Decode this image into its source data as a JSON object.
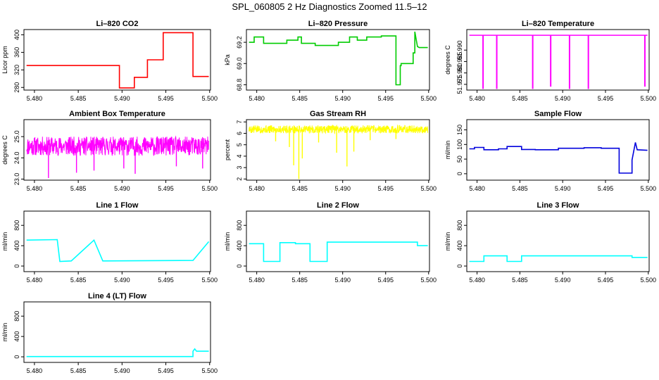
{
  "page": {
    "title": "SPL_060805  2 Hz Diagnostics Zoomed 11.5–12"
  },
  "chart_data": [
    {
      "type": "line",
      "title": "Li–820 CO2",
      "ylabel": "Licor ppm",
      "color": "#ff0000",
      "xlim": [
        5.4788,
        5.5001
      ],
      "ylim": [
        274,
        412
      ],
      "yticks": [
        280,
        320,
        360,
        400
      ],
      "ytick_labels": [
        "280",
        "320",
        "360",
        "400"
      ],
      "xticks": [
        5.48,
        5.485,
        5.49,
        5.495,
        5.5
      ],
      "xtick_labels": [
        "5.480",
        "5.485",
        "5.490",
        "5.495",
        "5.500"
      ],
      "series": [
        {
          "x": [
            5.4791,
            5.4897,
            5.4897,
            5.4914,
            5.4914,
            5.4929,
            5.4929,
            5.4947,
            5.4947,
            5.4981,
            5.4981,
            5.4999
          ],
          "y": [
            330,
            330,
            279,
            279,
            303,
            303,
            343,
            343,
            405,
            405,
            305,
            305
          ]
        }
      ]
    },
    {
      "type": "line",
      "title": "Li–820 Pressure",
      "ylabel": "kPa",
      "color": "#00cc00",
      "xlim": [
        5.4788,
        5.5001
      ],
      "ylim": [
        68.75,
        69.32
      ],
      "yticks": [
        68.8,
        69.0,
        69.2
      ],
      "ytick_labels": [
        "68.8",
        "69.0",
        "69.2"
      ],
      "xticks": [
        5.48,
        5.485,
        5.49,
        5.495,
        5.5
      ],
      "xtick_labels": [
        "5.480",
        "5.485",
        "5.490",
        "5.495",
        "5.500"
      ],
      "series": [
        {
          "x": [
            5.4791,
            5.4797,
            5.4797,
            5.4808,
            5.4808,
            5.4835,
            5.4835,
            5.4848,
            5.4848,
            5.4852,
            5.4852,
            5.4868,
            5.4868,
            5.4895,
            5.4895,
            5.4908,
            5.4908,
            5.4917,
            5.4917,
            5.4928,
            5.4928,
            5.4945,
            5.4945,
            5.4962,
            5.4962,
            5.4967,
            5.4967,
            5.4968,
            5.4968,
            5.4982,
            5.4982,
            5.4984,
            5.4984,
            5.4987,
            5.4989,
            5.4999
          ],
          "y": [
            69.2,
            69.2,
            69.25,
            69.25,
            69.19,
            69.19,
            69.22,
            69.22,
            69.25,
            69.25,
            69.19,
            69.19,
            69.17,
            69.17,
            69.2,
            69.2,
            69.25,
            69.25,
            69.22,
            69.22,
            69.25,
            69.25,
            69.26,
            69.26,
            68.8,
            68.8,
            68.98,
            68.98,
            69.0,
            69.0,
            69.1,
            69.1,
            69.3,
            69.16,
            69.15,
            69.15
          ]
        }
      ]
    },
    {
      "type": "line",
      "title": "Li–820 Temperature",
      "ylabel": "degrees C",
      "color": "#ff00ff",
      "xlim": [
        5.4788,
        5.5001
      ],
      "ylim": [
        51.9725,
        51.999
      ],
      "yticks": [
        51.975,
        51.98,
        51.985,
        51.99
      ],
      "ytick_labels": [
        "51.975",
        "51.980",
        "51.985",
        "51.990"
      ],
      "xticks": [
        5.48,
        5.485,
        5.49,
        5.495,
        5.5
      ],
      "xtick_labels": [
        "5.480",
        "5.485",
        "5.490",
        "5.495",
        "5.500"
      ],
      "baseline": 51.9965,
      "xmin": 5.4791,
      "xmax": 5.4999,
      "dips": [
        {
          "x": 5.4807,
          "y": 51.973
        },
        {
          "x": 5.4823,
          "y": 51.973
        },
        {
          "x": 5.4865,
          "y": 51.973
        },
        {
          "x": 5.4886,
          "y": 51.974
        },
        {
          "x": 5.4908,
          "y": 51.973
        },
        {
          "x": 5.493,
          "y": 51.973
        },
        {
          "x": 5.4996,
          "y": 51.974
        }
      ]
    },
    {
      "type": "line",
      "title": "Ambient Box Temperature",
      "ylabel": "degrees C",
      "color": "#ff00ff",
      "xlim": [
        5.4788,
        5.5001
      ],
      "ylim": [
        22.95,
        25.8
      ],
      "yticks": [
        23.0,
        24.0,
        25.0
      ],
      "ytick_labels": [
        "23.0",
        "24.0",
        "25.0"
      ],
      "xticks": [
        5.48,
        5.485,
        5.49,
        5.495,
        5.5
      ],
      "xtick_labels": [
        "5.480",
        "5.485",
        "5.490",
        "5.495",
        "5.500"
      ],
      "noise": {
        "xmin": 5.4791,
        "xmax": 5.4999,
        "center": 24.55,
        "amplitude": 0.45,
        "points": 700,
        "seed": 11,
        "spikes": [
          {
            "x": 5.4816,
            "y": 23.05
          },
          {
            "x": 5.4848,
            "y": 23.3
          },
          {
            "x": 5.4868,
            "y": 23.4
          },
          {
            "x": 5.4902,
            "y": 23.5
          },
          {
            "x": 5.4915,
            "y": 23.25
          },
          {
            "x": 5.4962,
            "y": 23.6
          },
          {
            "x": 5.4992,
            "y": 23.5
          }
        ]
      }
    },
    {
      "type": "line",
      "title": "Gas Stream RH",
      "ylabel": "percent",
      "color": "#ffff00",
      "xlim": [
        5.4788,
        5.5001
      ],
      "ylim": [
        1.9,
        7.2
      ],
      "yticks": [
        2,
        3,
        4,
        5,
        6,
        7
      ],
      "ytick_labels": [
        "2",
        "3",
        "4",
        "5",
        "6",
        "7"
      ],
      "xticks": [
        5.48,
        5.485,
        5.49,
        5.495,
        5.5
      ],
      "xtick_labels": [
        "5.480",
        "5.485",
        "5.490",
        "5.495",
        "5.500"
      ],
      "noise": {
        "xmin": 5.4791,
        "xmax": 5.4999,
        "center": 6.35,
        "amplitude": 0.35,
        "points": 700,
        "seed": 5,
        "spikes": [
          {
            "x": 5.4822,
            "y": 5.3
          },
          {
            "x": 5.4838,
            "y": 4.8
          },
          {
            "x": 5.4843,
            "y": 3.2
          },
          {
            "x": 5.4849,
            "y": 2.0
          },
          {
            "x": 5.4853,
            "y": 3.8
          },
          {
            "x": 5.4872,
            "y": 5.2
          },
          {
            "x": 5.4893,
            "y": 4.3
          },
          {
            "x": 5.4905,
            "y": 3.1
          },
          {
            "x": 5.4913,
            "y": 4.4
          },
          {
            "x": 5.4932,
            "y": 5.4
          },
          {
            "x": 5.4962,
            "y": 5.5
          }
        ]
      }
    },
    {
      "type": "line",
      "title": "Sample Flow",
      "ylabel": "ml/min",
      "color": "#0000dd",
      "xlim": [
        5.4788,
        5.5001
      ],
      "ylim": [
        -22,
        185
      ],
      "yticks": [
        0,
        50,
        100,
        150
      ],
      "ytick_labels": [
        "0",
        "50",
        "100",
        "150"
      ],
      "xticks": [
        5.48,
        5.485,
        5.49,
        5.495,
        5.5
      ],
      "xtick_labels": [
        "5.480",
        "5.485",
        "5.490",
        "5.495",
        "5.500"
      ],
      "series": [
        {
          "x": [
            5.4791,
            5.4797,
            5.4797,
            5.4808,
            5.4808,
            5.4825,
            5.4825,
            5.4835,
            5.4835,
            5.4852,
            5.4852,
            5.4868,
            5.4868,
            5.4895,
            5.4895,
            5.4925,
            5.4925,
            5.4945,
            5.4945,
            5.4966,
            5.4966,
            5.4981,
            5.4981,
            5.4985,
            5.4987,
            5.4999
          ],
          "y": [
            85,
            85,
            90,
            90,
            82,
            82,
            85,
            85,
            93,
            93,
            83,
            83,
            82,
            82,
            87,
            87,
            89,
            89,
            87,
            87,
            2,
            2,
            47,
            107,
            82,
            80
          ]
        }
      ]
    },
    {
      "type": "line",
      "title": "Line 1 Flow",
      "ylabel": "ml/min",
      "color": "#00ffff",
      "xlim": [
        5.4788,
        5.5001
      ],
      "ylim": [
        -110,
        1080
      ],
      "yticks": [
        0,
        400,
        800
      ],
      "ytick_labels": [
        "0",
        "400",
        "800"
      ],
      "xticks": [
        5.48,
        5.485,
        5.49,
        5.495,
        5.5
      ],
      "xtick_labels": [
        "5.480",
        "5.485",
        "5.490",
        "5.495",
        "5.500"
      ],
      "series": [
        {
          "x": [
            5.4791,
            5.4826,
            5.4826,
            5.4829,
            5.4829,
            5.4842,
            5.4842,
            5.4868,
            5.4868,
            5.4878,
            5.4878,
            5.4981,
            5.4981,
            5.4999
          ],
          "y": [
            510,
            520,
            520,
            90,
            90,
            100,
            100,
            510,
            510,
            100,
            100,
            110,
            110,
            480
          ]
        }
      ]
    },
    {
      "type": "line",
      "title": "Line 2 Flow",
      "ylabel": "ml/min",
      "color": "#00ffff",
      "xlim": [
        5.4788,
        5.5001
      ],
      "ylim": [
        -110,
        1080
      ],
      "yticks": [
        0,
        400,
        800
      ],
      "ytick_labels": [
        "0",
        "400",
        "800"
      ],
      "xticks": [
        5.48,
        5.485,
        5.49,
        5.495,
        5.5
      ],
      "xtick_labels": [
        "5.480",
        "5.485",
        "5.490",
        "5.495",
        "5.500"
      ],
      "series": [
        {
          "x": [
            5.4791,
            5.4808,
            5.4808,
            5.4827,
            5.4827,
            5.4845,
            5.4845,
            5.4862,
            5.4862,
            5.4882,
            5.4882,
            5.4987,
            5.4987,
            5.4999
          ],
          "y": [
            440,
            440,
            90,
            90,
            460,
            460,
            440,
            440,
            90,
            90,
            470,
            470,
            400,
            400
          ]
        }
      ]
    },
    {
      "type": "line",
      "title": "Line 3 Flow",
      "ylabel": "ml/min",
      "color": "#00ffff",
      "xlim": [
        5.4788,
        5.5001
      ],
      "ylim": [
        -110,
        1080
      ],
      "yticks": [
        0,
        400,
        800
      ],
      "ytick_labels": [
        "0",
        "400",
        "800"
      ],
      "xticks": [
        5.48,
        5.485,
        5.49,
        5.495,
        5.5
      ],
      "xtick_labels": [
        "5.480",
        "5.485",
        "5.490",
        "5.495",
        "5.500"
      ],
      "series": [
        {
          "x": [
            5.4791,
            5.4808,
            5.4808,
            5.4835,
            5.4835,
            5.4852,
            5.4852,
            5.4981,
            5.4981,
            5.4999
          ],
          "y": [
            90,
            90,
            200,
            200,
            90,
            90,
            200,
            200,
            170,
            170
          ]
        }
      ]
    },
    {
      "type": "line",
      "title": "Line 4 (LT) Flow",
      "ylabel": "ml/min",
      "color": "#00ffff",
      "xlim": [
        5.4788,
        5.5001
      ],
      "ylim": [
        -110,
        1080
      ],
      "yticks": [
        0,
        400,
        800
      ],
      "ytick_labels": [
        "0",
        "400",
        "800"
      ],
      "xticks": [
        5.48,
        5.485,
        5.49,
        5.495,
        5.5
      ],
      "xtick_labels": [
        "5.480",
        "5.485",
        "5.490",
        "5.495",
        "5.500"
      ],
      "series": [
        {
          "x": [
            5.4791,
            5.4981,
            5.4981,
            5.4983,
            5.4985,
            5.4999
          ],
          "y": [
            5,
            5,
            110,
            155,
            110,
            110
          ]
        }
      ]
    }
  ]
}
